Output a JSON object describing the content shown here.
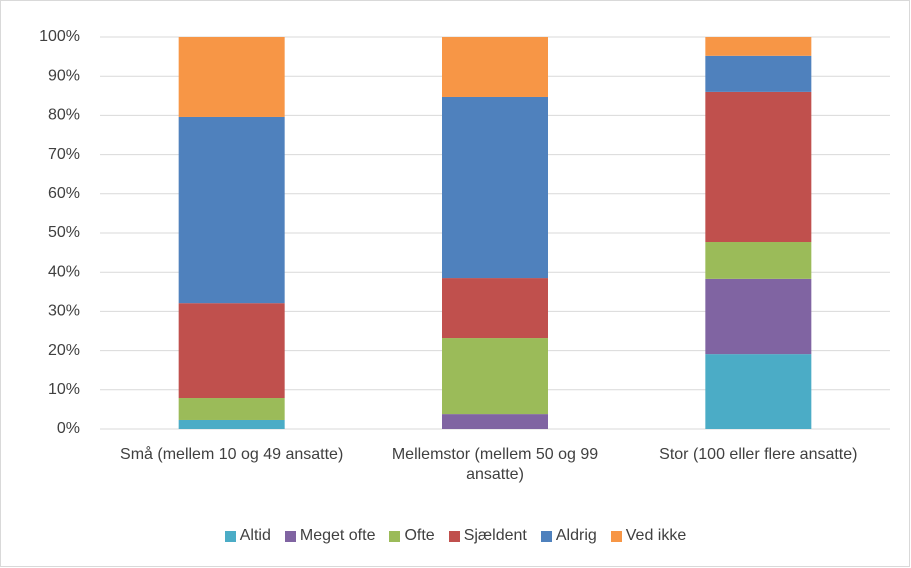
{
  "chart_data": {
    "type": "bar",
    "stacked": true,
    "categories": [
      "Små (mellem 10 og 49 ansatte)",
      "Mellemstor (mellem 50 og 99 ansatte)",
      "Stor (100 eller flere ansatte)"
    ],
    "series": [
      {
        "name": "Altid",
        "color": "#4bacc6",
        "values": [
          2.3,
          0,
          19.1
        ]
      },
      {
        "name": "Meget ofte",
        "color": "#8064a2",
        "values": [
          0,
          3.8,
          19.2
        ]
      },
      {
        "name": "Ofte",
        "color": "#9bbb59",
        "values": [
          5.6,
          19.4,
          9.4
        ]
      },
      {
        "name": "Sjældent",
        "color": "#c0504d",
        "values": [
          24.2,
          15.3,
          38.3
        ]
      },
      {
        "name": "Aldrig",
        "color": "#4f81bd",
        "values": [
          47.5,
          46.2,
          9.2
        ]
      },
      {
        "name": "Ved ikke",
        "color": "#f79646",
        "values": [
          20.4,
          15.3,
          4.8
        ]
      }
    ],
    "ylim": [
      0,
      100
    ],
    "yticks": [
      {
        "value": 0,
        "label": "0%"
      },
      {
        "value": 10,
        "label": "10%"
      },
      {
        "value": 20,
        "label": "20%"
      },
      {
        "value": 30,
        "label": "30%"
      },
      {
        "value": 40,
        "label": "40%"
      },
      {
        "value": 50,
        "label": "50%"
      },
      {
        "value": 60,
        "label": "60%"
      },
      {
        "value": 70,
        "label": "70%"
      },
      {
        "value": 80,
        "label": "80%"
      },
      {
        "value": 90,
        "label": "90%"
      },
      {
        "value": 100,
        "label": "100%"
      }
    ],
    "grid": true,
    "legend": "bottom"
  }
}
